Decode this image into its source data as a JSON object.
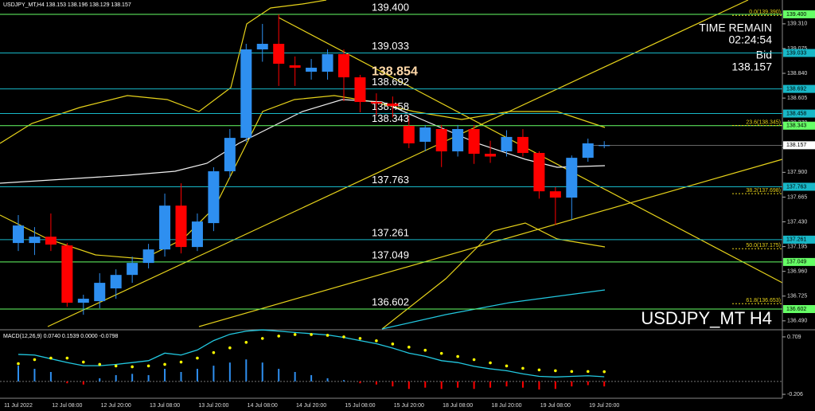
{
  "chart_data": [
    {
      "type": "candlestick",
      "title": "USDJPY_MT,H4  138.153 138.196 138.129 138.157",
      "watermark": "USDJPY_MT H4",
      "timer_label": "TIME REMAIN",
      "timer": "02:24:54",
      "bid_label": "Bid",
      "bid": {
        "value": 138.157,
        "label": "138.157"
      },
      "annotation": {
        "value": 138.854,
        "label": "138.854"
      },
      "up_color": "#2e8ff0",
      "down_color": "#ff0000",
      "categories": [
        "11 Jul 2022",
        null,
        null,
        "12 Jul 08:00",
        null,
        null,
        "12 Jul 20:00",
        null,
        null,
        "13 Jul 08:00",
        null,
        null,
        "13 Jul 20:00",
        null,
        null,
        "14 Jul 08:00",
        null,
        null,
        "14 Jul 20:00",
        null,
        null,
        "15 Jul 08:00",
        null,
        null,
        "15 Jul 20:00",
        null,
        null,
        "18 Jul 08:00",
        null,
        null,
        "18 Jul 20:00",
        null,
        null,
        "19 Jul 08:00",
        null,
        null,
        "19 Jul 20:00"
      ],
      "open": [
        137.229,
        137.229,
        137.289,
        137.206,
        136.662,
        136.677,
        136.798,
        136.926,
        137.04,
        137.168,
        137.584,
        137.191,
        137.418,
        137.91,
        138.227,
        139.067,
        139.12,
        138.916,
        138.855,
        138.855,
        139.022,
        138.802,
        138.568,
        138.553,
        138.341,
        138.19,
        138.311,
        138.099,
        138.311,
        138.076,
        138.099,
        138.236,
        138.084,
        137.72,
        137.66,
        138.038,
        138.153
      ],
      "high": [
        137.494,
        137.38,
        137.509,
        137.229,
        136.738,
        136.942,
        136.979,
        137.1,
        137.221,
        137.698,
        137.796,
        137.509,
        137.948,
        138.311,
        139.12,
        139.309,
        139.4,
        139.0,
        138.976,
        139.067,
        139.067,
        138.825,
        138.65,
        138.62,
        138.44,
        138.35,
        138.35,
        138.35,
        138.35,
        138.2,
        138.3,
        138.31,
        138.1,
        137.76,
        138.06,
        138.22,
        138.196
      ],
      "low": [
        137.153,
        137.115,
        137.153,
        136.624,
        136.548,
        136.609,
        136.7,
        136.851,
        136.988,
        137.1,
        137.13,
        137.153,
        137.342,
        137.85,
        138.19,
        138.95,
        138.72,
        138.72,
        138.78,
        138.78,
        138.576,
        138.47,
        138.44,
        138.42,
        138.13,
        138.1,
        137.95,
        138.05,
        137.98,
        137.99,
        138.05,
        138.05,
        137.65,
        137.4,
        137.45,
        138.0,
        138.129
      ],
      "close": [
        137.395,
        137.289,
        137.214,
        136.662,
        136.7,
        136.851,
        136.926,
        137.04,
        137.168,
        137.584,
        137.191,
        137.433,
        137.91,
        138.227,
        139.067,
        139.12,
        138.931,
        138.893,
        138.893,
        139.022,
        138.802,
        138.568,
        138.553,
        138.53,
        138.175,
        138.326,
        138.099,
        138.311,
        138.076,
        138.05,
        138.236,
        138.084,
        137.72,
        137.66,
        138.038,
        138.175,
        138.157
      ],
      "ylim": [
        136.413,
        139.536
      ],
      "yticks": [
        {
          "value": 139.31,
          "label": "139.310"
        },
        139.075,
        {
          "value": 138.84,
          "label": "138.840"
        },
        138.605,
        {
          "value": 138.37,
          "label": "138.370"
        },
        138.135,
        {
          "value": 137.9,
          "label": "137.900"
        },
        137.665,
        {
          "value": 137.43,
          "label": "137.430"
        },
        137.195,
        {
          "value": 136.96,
          "label": "136.960"
        },
        136.725,
        {
          "value": 136.49,
          "label": "136.490"
        }
      ],
      "levels": [
        {
          "value": 139.4,
          "label": "139.400",
          "color": "#66ff66"
        },
        {
          "value": 139.033,
          "label": "139.033",
          "color": "#18b8c8"
        },
        {
          "value": 138.692,
          "label": "138.692",
          "color": "#18b8c8"
        },
        {
          "value": 138.458,
          "label": "138.458",
          "color": "#18b8c8"
        },
        {
          "value": 138.343,
          "label": "138.343",
          "color": "#66ff66"
        },
        {
          "value": 137.763,
          "label": "137.763",
          "color": "#18b8c8"
        },
        {
          "value": 137.261,
          "label": "137.261",
          "color": "#18b8c8"
        },
        {
          "value": 137.049,
          "label": "137.049",
          "color": "#66ff66"
        },
        {
          "value": 136.602,
          "label": "136.602",
          "color": "#66ff66"
        }
      ],
      "fibo": [
        {
          "value": 139.39,
          "label": "0.0(139.390)"
        },
        {
          "value": 138.345,
          "label": "23.6(138.345)"
        },
        {
          "value": 137.698,
          "label": "38.2(137.698)"
        },
        {
          "value": 137.175,
          "label": "50.0(137.175)"
        },
        {
          "value": 136.653,
          "label": "61.8(136.653)"
        }
      ]
    },
    {
      "type": "macd",
      "title": "MACD(12,26,9) 0.0740 0.1539 0.0000 -0.0798",
      "histogram": [
        0.25,
        0.2,
        0.15,
        -0.03,
        -0.05,
        0.05,
        0.1,
        0.12,
        0.1,
        0.2,
        0.15,
        0.2,
        0.25,
        0.3,
        0.35,
        0.3,
        0.2,
        0.15,
        0.1,
        0.05,
        0.02,
        -0.03,
        -0.05,
        -0.08,
        -0.12,
        -0.1,
        -0.12,
        -0.1,
        -0.12,
        -0.1,
        -0.08,
        -0.1,
        -0.13,
        -0.12,
        -0.08,
        -0.06,
        -0.08
      ],
      "macd": [
        0.43,
        0.42,
        0.36,
        0.3,
        0.25,
        0.25,
        0.27,
        0.3,
        0.33,
        0.45,
        0.42,
        0.5,
        0.65,
        0.75,
        0.8,
        0.82,
        0.8,
        0.78,
        0.76,
        0.74,
        0.7,
        0.65,
        0.6,
        0.53,
        0.45,
        0.4,
        0.33,
        0.3,
        0.24,
        0.2,
        0.17,
        0.12,
        0.08,
        0.07,
        0.08,
        0.09,
        0.074
      ],
      "signal": [
        0.283,
        0.346,
        0.371,
        0.371,
        0.308,
        0.271,
        0.246,
        0.233,
        0.246,
        0.271,
        0.308,
        0.371,
        0.459,
        0.534,
        0.622,
        0.684,
        0.722,
        0.747,
        0.747,
        0.734,
        0.709,
        0.684,
        0.647,
        0.596,
        0.546,
        0.496,
        0.446,
        0.396,
        0.346,
        0.296,
        0.246,
        0.208,
        0.183,
        0.17,
        0.158,
        0.158,
        0.154
      ],
      "up_color": "#2e8ff0",
      "down_color": "#ff0000",
      "macd_color": "#22c8e0",
      "signal_color": "#ffff00",
      "ylim": [
        -0.256,
        0.797
      ],
      "yticks": [
        0.709,
        -0.206
      ]
    }
  ]
}
